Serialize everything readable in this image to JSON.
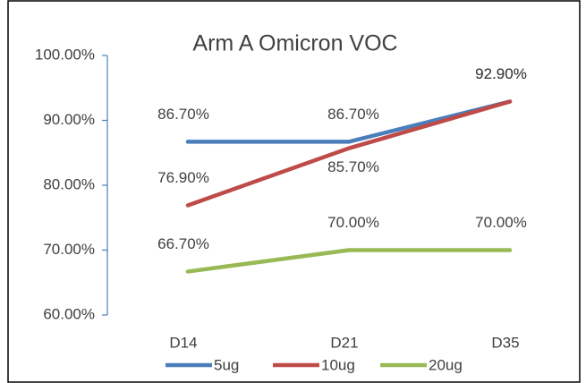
{
  "chart_data": {
    "type": "line",
    "title": "Arm A Omicron VOC",
    "categories": [
      "D14",
      "D21",
      "D35"
    ],
    "series": [
      {
        "name": "5ug",
        "color": "#4a7ebb",
        "values": [
          86.7,
          86.7,
          92.9
        ],
        "value_labels": [
          "86.70%",
          "86.70%",
          "92.90%"
        ]
      },
      {
        "name": "10ug",
        "color": "#be4b48",
        "values": [
          76.9,
          85.7,
          92.9
        ],
        "value_labels": [
          "76.90%",
          "85.70%",
          "92.90%"
        ]
      },
      {
        "name": "20ug",
        "color": "#98b954",
        "values": [
          66.7,
          70,
          70
        ],
        "value_labels": [
          "66.70%",
          "70.00%",
          "70.00%"
        ]
      }
    ],
    "ylim": [
      60,
      100
    ],
    "yticks": [
      {
        "value": 60,
        "label": "60.00%"
      },
      {
        "value": 70,
        "label": "70.00%"
      },
      {
        "value": 80,
        "label": "80.00%"
      },
      {
        "value": 90,
        "label": "90.00%"
      },
      {
        "value": 100,
        "label": "100.00%"
      }
    ],
    "legend": "bottom"
  }
}
